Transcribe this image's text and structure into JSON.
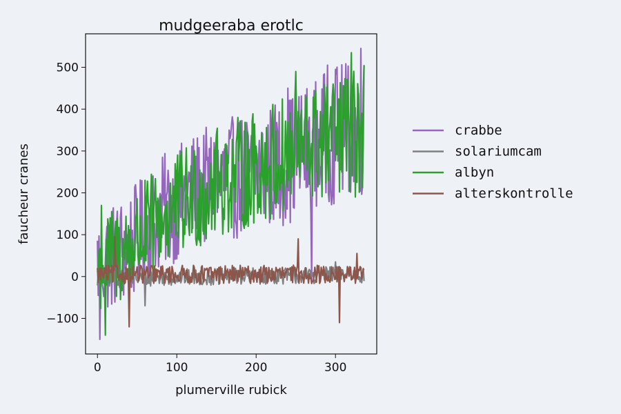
{
  "chart_data": {
    "type": "line",
    "title": "mudgeeraba erotlc",
    "xlabel": "plumerville rubick",
    "ylabel": "faucheur cranes",
    "xlim": [
      -15,
      352
    ],
    "ylim": [
      -185,
      580
    ],
    "xticks": [
      0,
      100,
      200,
      300
    ],
    "yticks": [
      -100,
      0,
      100,
      200,
      300,
      400,
      500
    ],
    "legend_position": "outside-right",
    "grid": false,
    "background": "#eef1f6",
    "x_count": 337,
    "series": [
      {
        "name": "crabbe",
        "color": "#9467bd",
        "anchors": [
          [
            0,
            30
          ],
          [
            40,
            70
          ],
          [
            80,
            150
          ],
          [
            120,
            200
          ],
          [
            160,
            230
          ],
          [
            200,
            250
          ],
          [
            240,
            280
          ],
          [
            280,
            320
          ],
          [
            300,
            340
          ],
          [
            336,
            360
          ]
        ],
        "amplitude": [
          [
            0,
            130
          ],
          [
            100,
            140
          ],
          [
            200,
            150
          ],
          [
            336,
            170
          ]
        ],
        "extremes": [
          [
            3,
            -150
          ],
          [
            150,
            330
          ],
          [
            240,
            450
          ],
          [
            290,
            505
          ],
          [
            300,
            495
          ],
          [
            332,
            545
          ],
          [
            230,
            140
          ],
          [
            270,
            -10
          ]
        ]
      },
      {
        "name": "solariumcam",
        "color": "#7f7f7f",
        "anchors": [
          [
            0,
            -5
          ],
          [
            336,
            5
          ]
        ],
        "amplitude": [
          [
            0,
            20
          ],
          [
            336,
            20
          ]
        ],
        "extremes": [
          [
            60,
            -70
          ],
          [
            300,
            35
          ]
        ]
      },
      {
        "name": "albyn",
        "color": "#2ca02c",
        "anchors": [
          [
            0,
            20
          ],
          [
            40,
            70
          ],
          [
            80,
            140
          ],
          [
            120,
            190
          ],
          [
            160,
            230
          ],
          [
            200,
            260
          ],
          [
            240,
            290
          ],
          [
            280,
            320
          ],
          [
            300,
            330
          ],
          [
            336,
            350
          ]
        ],
        "amplitude": [
          [
            0,
            120
          ],
          [
            100,
            130
          ],
          [
            200,
            140
          ],
          [
            336,
            150
          ]
        ],
        "extremes": [
          [
            10,
            -140
          ],
          [
            5,
            170
          ],
          [
            150,
            340
          ],
          [
            250,
            490
          ],
          [
            320,
            535
          ],
          [
            336,
            505
          ],
          [
            190,
            120
          ],
          [
            325,
            190
          ]
        ]
      },
      {
        "name": "alterskontrolle",
        "color": "#8c564b",
        "anchors": [
          [
            0,
            5
          ],
          [
            336,
            5
          ]
        ],
        "amplitude": [
          [
            0,
            22
          ],
          [
            336,
            22
          ]
        ],
        "extremes": [
          [
            22,
            95
          ],
          [
            40,
            -120
          ],
          [
            305,
            -110
          ],
          [
            253,
            90
          ],
          [
            327,
            55
          ]
        ]
      }
    ]
  }
}
